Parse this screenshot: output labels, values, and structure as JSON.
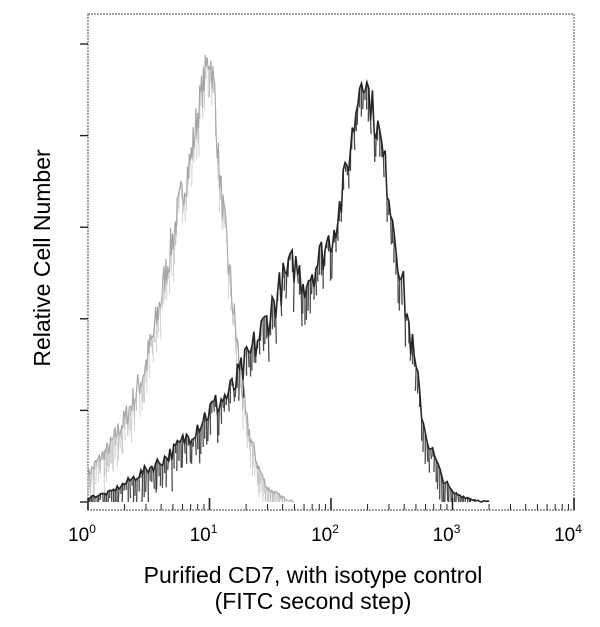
{
  "chart_data": {
    "type": "area",
    "title": "",
    "xlabel_lines": [
      "Purified CD7, with isotype control",
      "(FITC second step)"
    ],
    "ylabel": "Relative Cell Number",
    "x_scale": "log",
    "xlim": [
      1,
      10000
    ],
    "ylim": [
      0,
      1
    ],
    "x_ticks": [
      {
        "base": "10",
        "exp": "0",
        "value": 1
      },
      {
        "base": "10",
        "exp": "1",
        "value": 10
      },
      {
        "base": "10",
        "exp": "2",
        "value": 100
      },
      {
        "base": "10",
        "exp": "3",
        "value": 1000
      },
      {
        "base": "10",
        "exp": "4",
        "value": 10000
      }
    ],
    "y_ticks": [
      0,
      0.2,
      0.4,
      0.6,
      0.8,
      1.0
    ],
    "grid": false,
    "legend": "none",
    "series": [
      {
        "role": "isotype control",
        "color": "#9a9a9a",
        "x": [
          1,
          1.2,
          1.5,
          1.8,
          2.0,
          2.5,
          3.0,
          3.5,
          4.0,
          5.0,
          6.0,
          7.0,
          8.0,
          9.0,
          10.0,
          11.0,
          12.0,
          14.0,
          16.0,
          18.0,
          20.0,
          25.0,
          30.0,
          40.0,
          50.0
        ],
        "y": [
          0.06,
          0.09,
          0.12,
          0.16,
          0.18,
          0.24,
          0.3,
          0.37,
          0.45,
          0.58,
          0.68,
          0.75,
          0.85,
          0.92,
          0.98,
          0.9,
          0.72,
          0.55,
          0.4,
          0.28,
          0.18,
          0.08,
          0.03,
          0.01,
          0.0
        ]
      },
      {
        "role": "CD7",
        "color": "#1e1e1e",
        "x": [
          1,
          1.5,
          2.0,
          3.0,
          4.0,
          5.0,
          7.0,
          10.0,
          15.0,
          20.0,
          30.0,
          40.0,
          50.0,
          60.0,
          80.0,
          100.0,
          120.0,
          150.0,
          180.0,
          200.0,
          250.0,
          300.0,
          400.0,
          500.0,
          600.0,
          800.0,
          1000.0,
          1500.0,
          2000.0
        ],
        "y": [
          0.01,
          0.02,
          0.04,
          0.07,
          0.09,
          0.11,
          0.15,
          0.2,
          0.24,
          0.3,
          0.4,
          0.48,
          0.52,
          0.48,
          0.53,
          0.58,
          0.65,
          0.8,
          0.95,
          0.9,
          0.8,
          0.68,
          0.45,
          0.28,
          0.15,
          0.06,
          0.02,
          0.005,
          0.0
        ]
      }
    ]
  }
}
